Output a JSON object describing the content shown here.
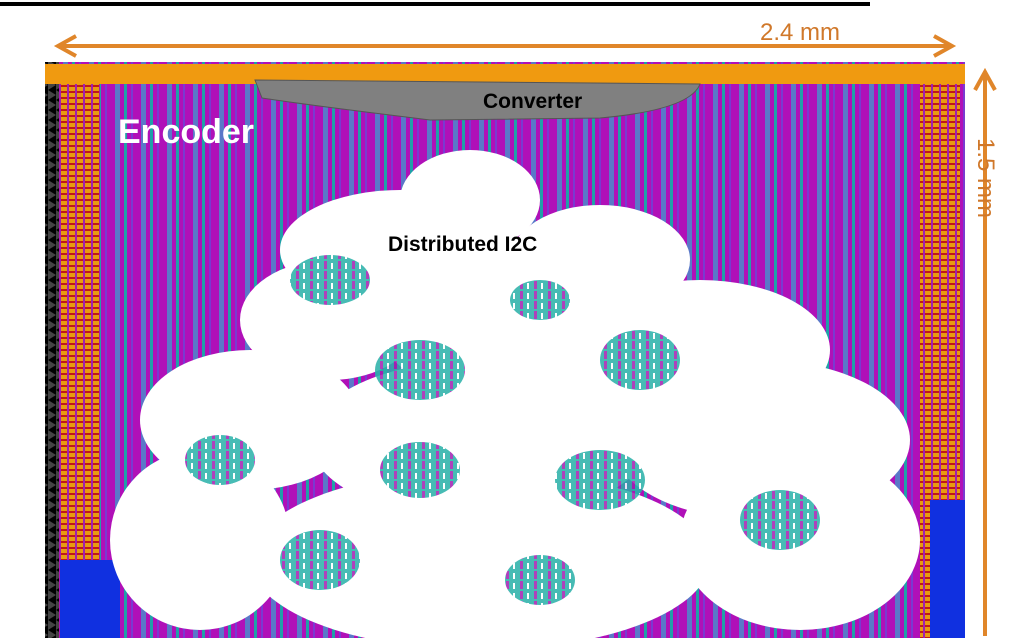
{
  "annotations": {
    "width_label": "2.4 mm",
    "height_label": "1.5 mm"
  },
  "regions": {
    "converter": "Converter",
    "encoder": "Encoder",
    "distributed_i2c": "Distributed I2C"
  }
}
